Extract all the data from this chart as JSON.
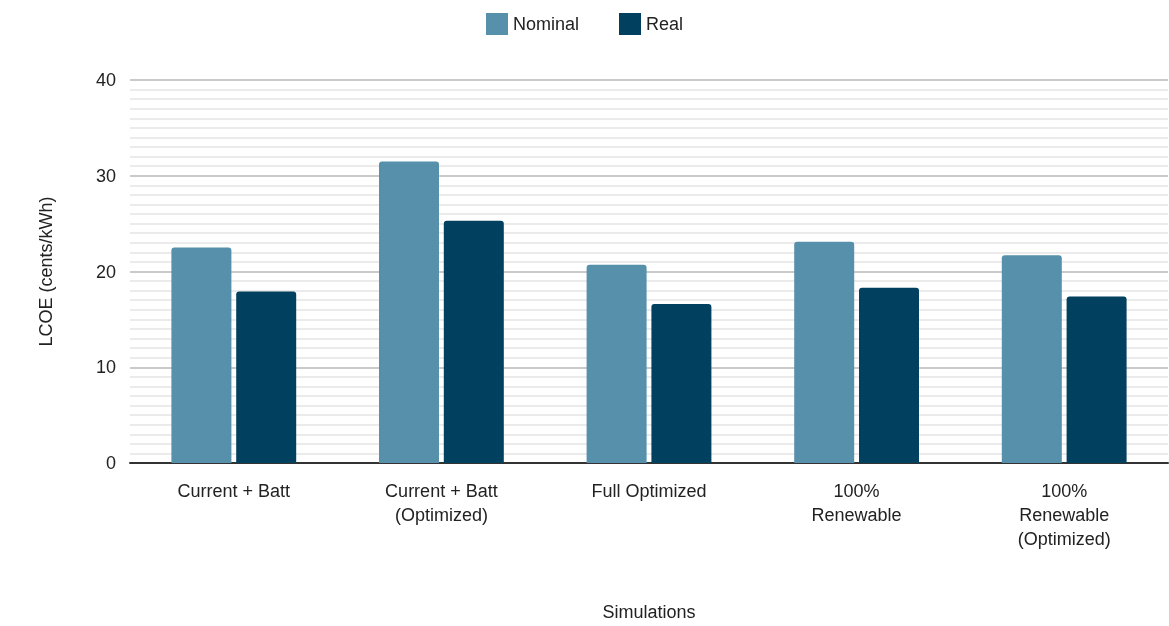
{
  "chart_data": {
    "type": "bar",
    "xlabel": "Simulations",
    "ylabel": "LCOE (cents/kWh)",
    "categories": [
      "Current + Batt",
      "Current + Batt\n(Optimized)",
      "Full Optimized",
      "100%\nRenewable",
      "100%\nRenewable\n(Optimized)"
    ],
    "series": [
      {
        "name": "Nominal",
        "color": "#5690ab",
        "values": [
          22.5,
          31.5,
          20.7,
          23.1,
          21.7
        ]
      },
      {
        "name": "Real",
        "color": "#01405e",
        "values": [
          17.9,
          25.3,
          16.6,
          18.3,
          17.4
        ]
      }
    ],
    "ylim": [
      0,
      40
    ],
    "yticks": [
      0,
      10,
      20,
      30,
      40
    ],
    "grid": true,
    "legend": "top"
  }
}
